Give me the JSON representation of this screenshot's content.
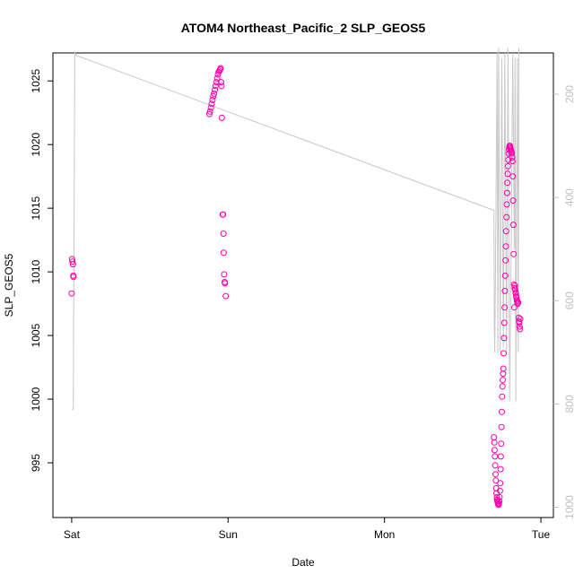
{
  "chart_data": {
    "type": "scatter",
    "title": "ATOM4 Northeast_Pacific_2 SLP_GEOS5",
    "xlabel": "Date",
    "ylabel": "SLP_GEOS5",
    "x_tick_labels": [
      "Sat",
      "Sun",
      "Mon",
      "Tue"
    ],
    "x_tick_days": [
      0,
      1,
      2,
      3
    ],
    "xlim": [
      -0.12,
      3.08
    ],
    "ylim": [
      990.7,
      1027.2
    ],
    "y_ticks": [
      995,
      1000,
      1005,
      1010,
      1015,
      1020,
      1025
    ],
    "y2_ticks": [
      200,
      400,
      600,
      800,
      1000
    ],
    "y2lim": [
      1020,
      120
    ],
    "colors": {
      "points": "#ff00aa",
      "profile": "#c8c8c8",
      "right_axis": "#c0c0c0"
    },
    "series": [
      {
        "points": [
          [
            0.0,
            1008.3
          ],
          [
            0.002,
            1011.0
          ],
          [
            0.005,
            1010.8
          ],
          [
            0.008,
            1010.6
          ],
          [
            0.01,
            1009.7
          ],
          [
            0.012,
            1009.6
          ],
          [
            0.88,
            1022.4
          ],
          [
            0.885,
            1022.6
          ],
          [
            0.89,
            1022.9
          ],
          [
            0.895,
            1023.2
          ],
          [
            0.9,
            1023.5
          ],
          [
            0.905,
            1023.8
          ],
          [
            0.91,
            1024.0
          ],
          [
            0.915,
            1024.3
          ],
          [
            0.92,
            1024.6
          ],
          [
            0.925,
            1024.9
          ],
          [
            0.93,
            1025.2
          ],
          [
            0.935,
            1025.5
          ],
          [
            0.94,
            1025.7
          ],
          [
            0.945,
            1025.8
          ],
          [
            0.95,
            1025.9
          ],
          [
            0.952,
            1026.0
          ],
          [
            0.955,
            1024.9
          ],
          [
            0.958,
            1024.6
          ],
          [
            0.96,
            1022.1
          ],
          [
            0.965,
            1014.5
          ],
          [
            0.968,
            1014.5
          ],
          [
            0.97,
            1013.0
          ],
          [
            0.972,
            1011.5
          ],
          [
            0.975,
            1009.8
          ],
          [
            0.978,
            1009.2
          ],
          [
            0.98,
            1009.1
          ],
          [
            0.985,
            1008.1
          ],
          [
            2.7,
            997.0
          ],
          [
            2.702,
            996.6
          ],
          [
            2.704,
            996.0
          ],
          [
            2.706,
            995.5
          ],
          [
            2.708,
            994.8
          ],
          [
            2.71,
            994.1
          ],
          [
            2.712,
            993.6
          ],
          [
            2.714,
            993.0
          ],
          [
            2.716,
            992.6
          ],
          [
            2.718,
            992.3
          ],
          [
            2.72,
            992.1
          ],
          [
            2.722,
            992.0
          ],
          [
            2.724,
            991.9
          ],
          [
            2.726,
            991.8
          ],
          [
            2.728,
            991.7
          ],
          [
            2.73,
            991.7
          ],
          [
            2.732,
            991.8
          ],
          [
            2.734,
            992.0
          ],
          [
            2.736,
            992.3
          ],
          [
            2.738,
            992.8
          ],
          [
            2.74,
            993.4
          ],
          [
            2.742,
            994.5
          ],
          [
            2.744,
            995.5
          ],
          [
            2.746,
            996.5
          ],
          [
            2.748,
            997.8
          ],
          [
            2.75,
            999.0
          ],
          [
            2.752,
            1000.2
          ],
          [
            2.754,
            1001.0
          ],
          [
            2.756,
            1001.5
          ],
          [
            2.758,
            1002.0
          ],
          [
            2.76,
            1002.4
          ],
          [
            2.762,
            1003.6
          ],
          [
            2.764,
            1004.8
          ],
          [
            2.766,
            1006.0
          ],
          [
            2.768,
            1007.2
          ],
          [
            2.77,
            1008.5
          ],
          [
            2.772,
            1009.7
          ],
          [
            2.774,
            1010.9
          ],
          [
            2.776,
            1012.0
          ],
          [
            2.778,
            1013.2
          ],
          [
            2.78,
            1014.3
          ],
          [
            2.782,
            1015.3
          ],
          [
            2.784,
            1016.2
          ],
          [
            2.786,
            1017.0
          ],
          [
            2.788,
            1017.7
          ],
          [
            2.79,
            1018.3
          ],
          [
            2.792,
            1018.8
          ],
          [
            2.794,
            1019.3
          ],
          [
            2.796,
            1019.6
          ],
          [
            2.798,
            1019.8
          ],
          [
            2.8,
            1019.9
          ],
          [
            2.802,
            1019.9
          ],
          [
            2.804,
            1019.8
          ],
          [
            2.806,
            1019.7
          ],
          [
            2.808,
            1019.6
          ],
          [
            2.81,
            1019.5
          ],
          [
            2.812,
            1019.4
          ],
          [
            2.814,
            1019.3
          ],
          [
            2.816,
            1019.0
          ],
          [
            2.818,
            1018.7
          ],
          [
            2.82,
            1017.5
          ],
          [
            2.822,
            1015.6
          ],
          [
            2.824,
            1013.7
          ],
          [
            2.826,
            1011.4
          ],
          [
            2.828,
            1009.0
          ],
          [
            2.83,
            1007.2
          ],
          [
            2.832,
            1008.7
          ],
          [
            2.834,
            1008.9
          ],
          [
            2.836,
            1008.6
          ],
          [
            2.838,
            1008.4
          ],
          [
            2.84,
            1008.3
          ],
          [
            2.842,
            1008.1
          ],
          [
            2.844,
            1008.0
          ],
          [
            2.846,
            1007.8
          ],
          [
            2.848,
            1007.7
          ],
          [
            2.85,
            1007.6
          ],
          [
            2.852,
            1007.5
          ],
          [
            2.854,
            1007.6
          ],
          [
            2.858,
            1006.4
          ],
          [
            2.86,
            1006.1
          ],
          [
            2.862,
            1006.0
          ],
          [
            2.864,
            1005.7
          ],
          [
            2.866,
            1005.5
          ],
          [
            2.868,
            1006.3
          ]
        ]
      },
      {
        "profile_day_depth": [
          [
            0.0,
            810
          ],
          [
            0.01,
            810
          ],
          [
            0.02,
            120
          ],
          [
            0.03,
            125
          ],
          [
            2.7,
            425
          ],
          [
            2.702,
            650
          ],
          [
            2.705,
            700
          ],
          [
            2.71,
            530
          ],
          [
            2.72,
            120
          ],
          [
            2.725,
            700
          ],
          [
            2.73,
            110
          ],
          [
            2.74,
            700
          ],
          [
            2.75,
            130
          ],
          [
            2.76,
            690
          ],
          [
            2.77,
            120
          ],
          [
            2.78,
            700
          ],
          [
            2.79,
            110
          ],
          [
            2.8,
            795
          ],
          [
            2.81,
            500
          ],
          [
            2.82,
            120
          ],
          [
            2.83,
            500
          ],
          [
            2.835,
            130
          ],
          [
            2.84,
            795
          ],
          [
            2.845,
            400
          ],
          [
            2.85,
            130
          ],
          [
            2.855,
            700
          ],
          [
            2.86,
            110
          ]
        ]
      }
    ]
  }
}
